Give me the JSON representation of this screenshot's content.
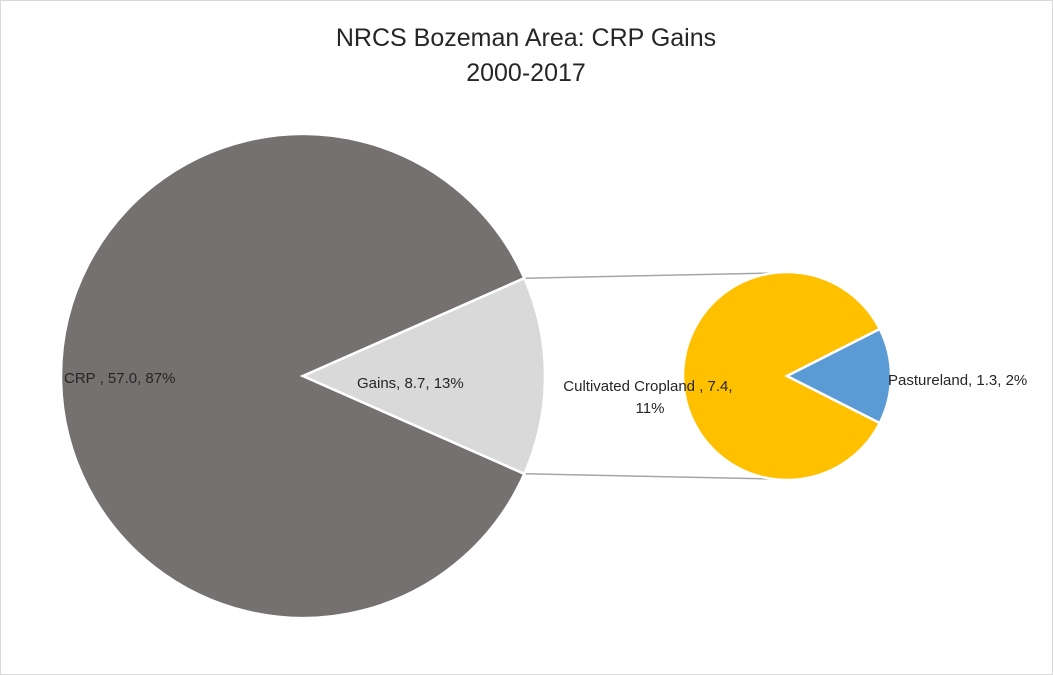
{
  "chart_data": {
    "type": "pie",
    "subtype": "pie-of-pie",
    "title": "NRCS Bozeman Area: CRP Gains",
    "subtitle": "2000-2017",
    "main_pie": {
      "slices": [
        {
          "name": "CRP",
          "value": 57.0,
          "percent": 87,
          "color": "#767171",
          "label_line1": "CRP , 57.0, 87%"
        },
        {
          "name": "Gains",
          "value": 8.7,
          "percent": 13,
          "color": "#d9d9d9",
          "label_line1": "Gains, 8.7, 13%"
        }
      ]
    },
    "secondary_pie": {
      "breakdown_of": "Gains",
      "slices": [
        {
          "name": "Cultivated Cropland",
          "value": 7.4,
          "percent": 11,
          "color": "#ffc000",
          "label_line1": "Cultivated Cropland , 7.4,",
          "label_line2": "11%"
        },
        {
          "name": "Pastureland",
          "value": 1.3,
          "percent": 2,
          "color": "#5b9bd5",
          "label_line1": "Pastureland, 1.3, 2%"
        }
      ]
    },
    "connector_color": "#a6a6a6",
    "legend": "none"
  }
}
